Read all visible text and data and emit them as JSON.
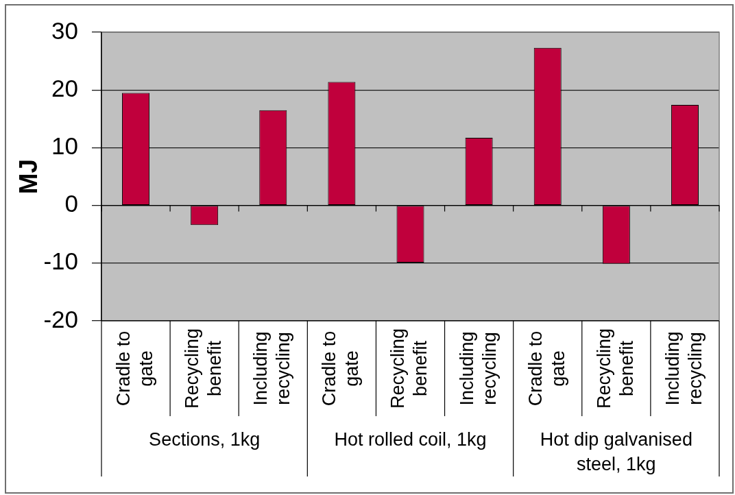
{
  "chart_data": {
    "type": "bar",
    "ylabel": "MJ",
    "categories": [
      "Cradle to gate",
      "Recycling benefit",
      "Including recycling",
      "Cradle to gate",
      "Recycling benefit",
      "Including recycling",
      "Cradle to gate",
      "Recycling benefit",
      "Including recycling"
    ],
    "values": [
      19.5,
      -3.4,
      16.5,
      21.4,
      -9.9,
      11.7,
      27.3,
      -10.1,
      17.4
    ],
    "color": "#c0003c",
    "ylim": [
      -20,
      30
    ],
    "yticks": [
      -20,
      -10,
      0,
      10,
      20,
      30
    ],
    "grid": "y",
    "annotations": [
      "Sections, 1kg",
      "Hot rolled coil, 1kg",
      "Hot dip galvanised steel, 1kg"
    ]
  }
}
